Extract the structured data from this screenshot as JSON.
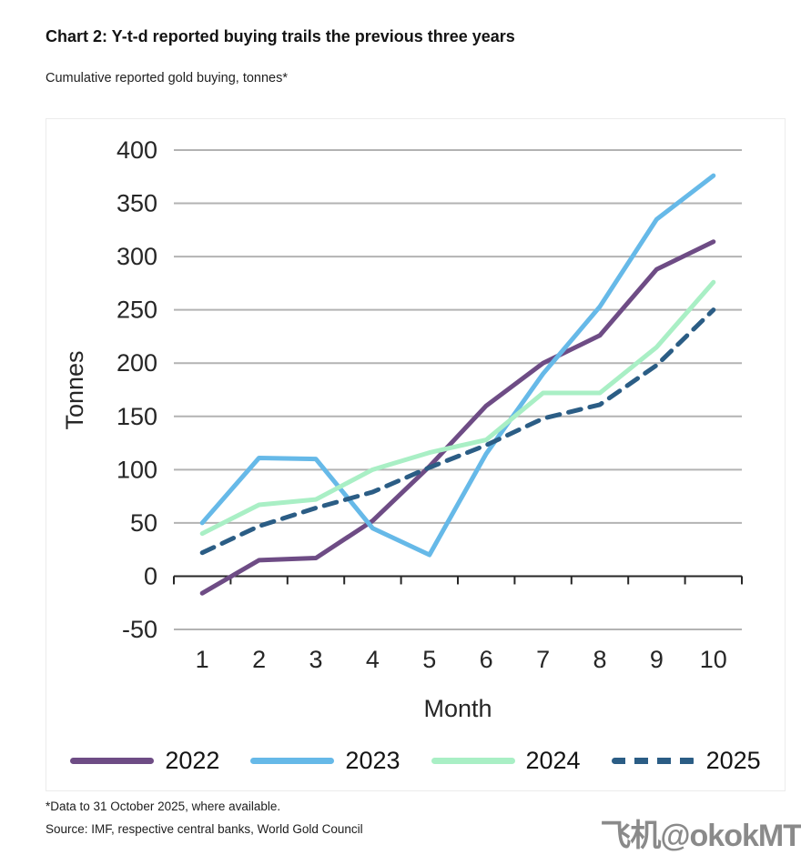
{
  "header": {
    "title": "Chart 2: Y-t-d reported buying trails the previous three years",
    "subtitle": "Cumulative reported gold buying, tonnes*"
  },
  "chart_data": {
    "type": "line",
    "x": [
      1,
      2,
      3,
      4,
      5,
      6,
      7,
      8,
      9,
      10
    ],
    "xlabel": "Month",
    "ylabel": "Tonnes",
    "ylim": [
      -50,
      400
    ],
    "yticks": [
      400,
      350,
      300,
      250,
      200,
      150,
      100,
      50,
      0,
      -50
    ],
    "grid": true,
    "legend_position": "bottom",
    "series": [
      {
        "name": "2022",
        "color": "#6e4c85",
        "dash": "solid",
        "values": [
          -16,
          15,
          17,
          52,
          103,
          160,
          200,
          226,
          288,
          314
        ]
      },
      {
        "name": "2023",
        "color": "#66b9e8",
        "dash": "solid",
        "values": [
          50,
          111,
          110,
          45,
          20,
          115,
          190,
          253,
          335,
          376
        ]
      },
      {
        "name": "2024",
        "color": "#a9efc5",
        "dash": "solid",
        "values": [
          40,
          67,
          72,
          100,
          116,
          128,
          172,
          172,
          215,
          276
        ]
      },
      {
        "name": "2025",
        "color": "#2b5d85",
        "dash": "dashed",
        "values": [
          22,
          47,
          64,
          79,
          102,
          123,
          148,
          161,
          198,
          250
        ]
      }
    ],
    "colors": {
      "gridline": "#b3b3b3",
      "axis": "#262626",
      "text": "#262626"
    }
  },
  "footer": {
    "note": "*Data to 31 October 2025, where available.",
    "source": "Source: IMF, respective central banks, World Gold Council"
  },
  "watermark": {
    "text": "飞机@okokMT"
  }
}
